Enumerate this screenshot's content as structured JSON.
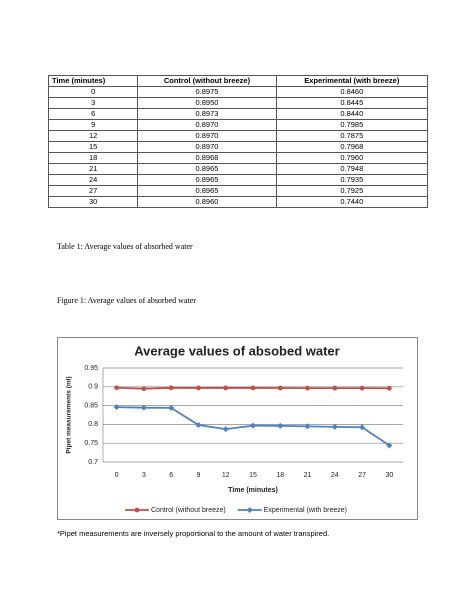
{
  "table": {
    "header": [
      "Time (minutes)",
      "Control (without breeze)",
      "Experimental (with breeze)"
    ],
    "rows": [
      [
        "0",
        "0.8975",
        "0.8460"
      ],
      [
        "3",
        "0.8950",
        "0.8445"
      ],
      [
        "6",
        "0.8973",
        "0.8440"
      ],
      [
        "9",
        "0.8970",
        "0.7985"
      ],
      [
        "12",
        "0.8970",
        "0.7875"
      ],
      [
        "15",
        "0.8970",
        "0.7968"
      ],
      [
        "18",
        "0.8968",
        "0.7960"
      ],
      [
        "21",
        "0.8965",
        "0.7948"
      ],
      [
        "24",
        "0.8965",
        "0.7935"
      ],
      [
        "27",
        "0.8965",
        "0.7925"
      ],
      [
        "30",
        "0.8960",
        "0.7440"
      ]
    ]
  },
  "table_caption": "Table 1: Average values of absorbed water",
  "figure_caption": "Figure 1: Average values of absorbed water",
  "chart_data": {
    "type": "line",
    "title": "Average values of absobed water",
    "x_label": "Time (minutes)",
    "y_label": "Pipet measurements (ml)",
    "categories": [
      "0",
      "3",
      "6",
      "9",
      "12",
      "15",
      "18",
      "21",
      "24",
      "27",
      "30"
    ],
    "series": [
      {
        "name": "Control (without breeze)",
        "color": "#c0504d",
        "marker": "circle",
        "values": [
          0.8975,
          0.895,
          0.8973,
          0.897,
          0.897,
          0.897,
          0.8968,
          0.8965,
          0.8965,
          0.8965,
          0.896
        ]
      },
      {
        "name": "Experimental (with breeze)",
        "color": "#4f81bd",
        "marker": "diamond",
        "values": [
          0.846,
          0.8445,
          0.844,
          0.7985,
          0.7875,
          0.7968,
          0.796,
          0.7948,
          0.7935,
          0.7925,
          0.744
        ]
      }
    ],
    "ylim": [
      0.7,
      0.95
    ],
    "yticks": [
      0.7,
      0.75,
      0.8,
      0.85,
      0.9,
      0.95
    ],
    "grid": true,
    "legend": "bottom"
  },
  "footnote": "*Pipet measurements are inversely proportional to the amount of water transpired."
}
